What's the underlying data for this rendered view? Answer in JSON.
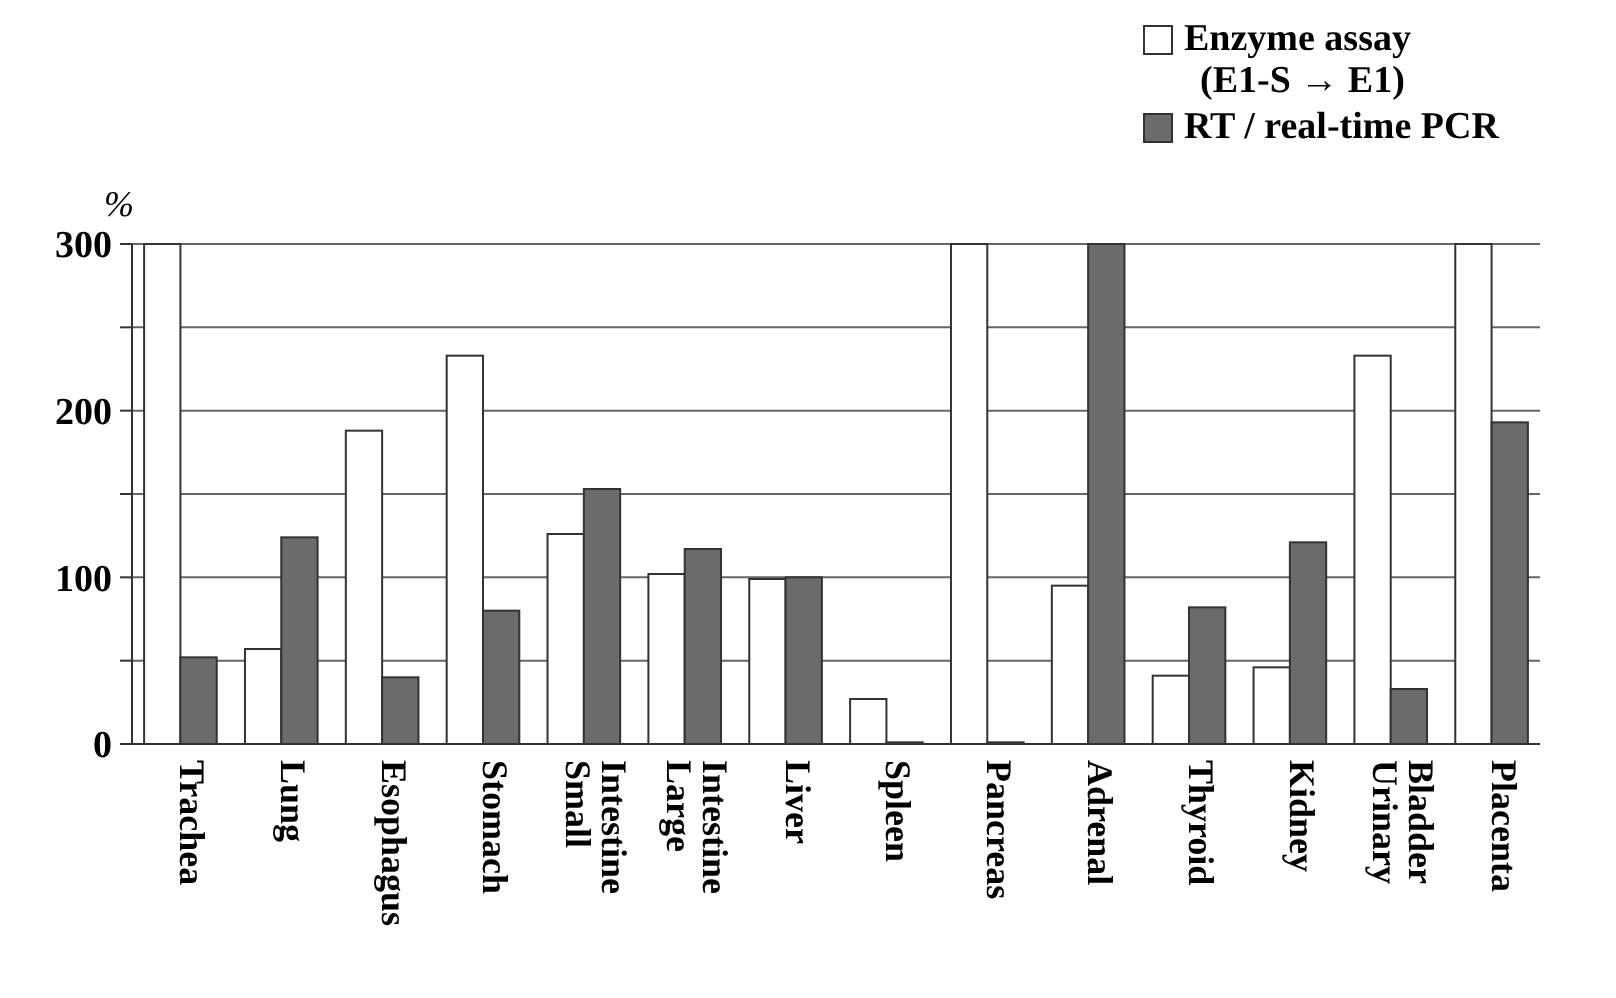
{
  "chart_data": {
    "type": "bar",
    "categories": [
      "Trachea",
      "Lung",
      "Esophagus",
      "Stomach",
      "Small Intestine",
      "Large Intestine",
      "Liver",
      "Spleen",
      "Pancreas",
      "Adrenal",
      "Thyroid",
      "Kidney",
      "Urinary Bladder",
      "Placenta"
    ],
    "series": [
      {
        "name": "Enzyme assay (E1-S → E1)",
        "color": "#ffffff",
        "values": [
          300,
          57,
          188,
          233,
          126,
          102,
          99,
          27,
          300,
          95,
          41,
          46,
          233,
          300
        ]
      },
      {
        "name": "RT / real-time PCR",
        "color": "#6b6b6b",
        "values": [
          52,
          124,
          40,
          80,
          153,
          117,
          100,
          1,
          1,
          300,
          82,
          121,
          33,
          193
        ]
      }
    ],
    "ylim": [
      0,
      300
    ],
    "yticks": [
      0,
      {
        "value": 50,
        "label": null
      },
      100,
      {
        "value": 150,
        "label": null
      },
      200,
      {
        "value": 250,
        "label": null
      },
      300
    ],
    "grid": "y",
    "legend": "top right",
    "annotations": [
      "%"
    ]
  }
}
